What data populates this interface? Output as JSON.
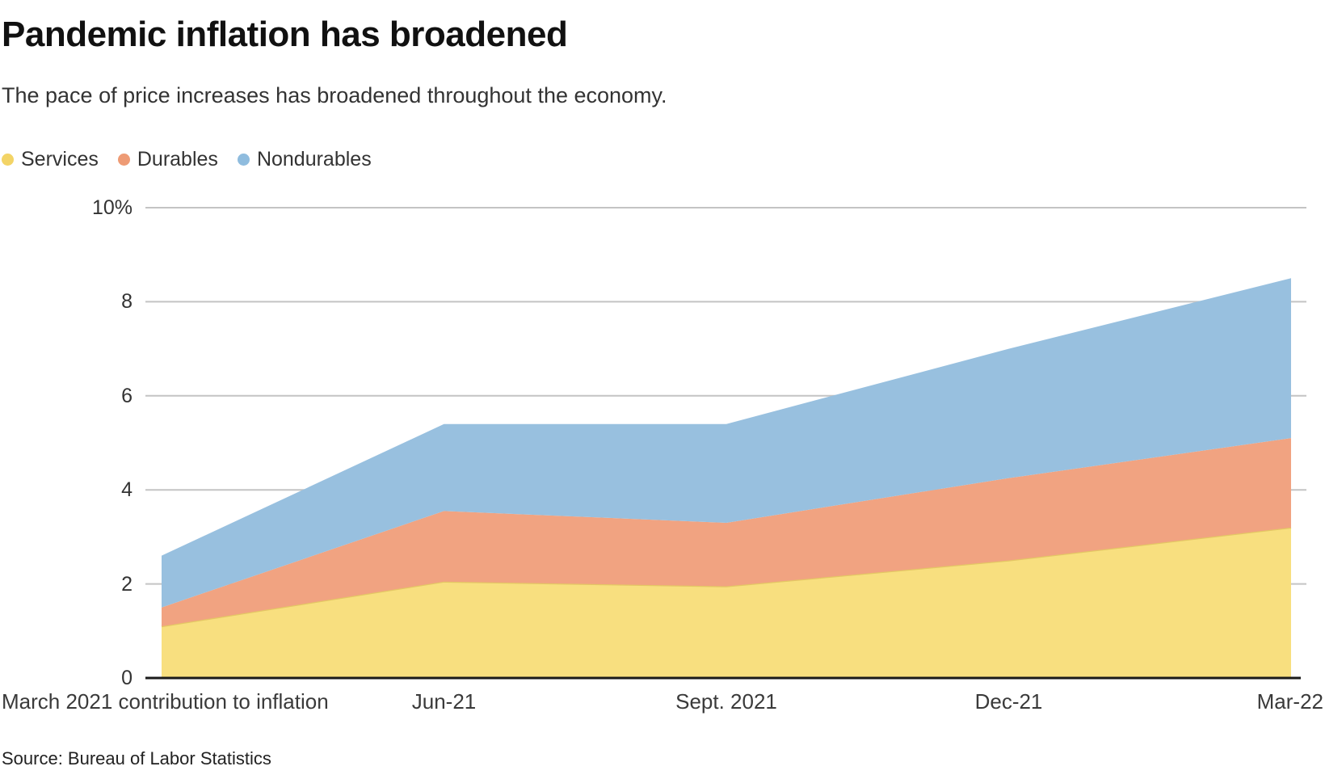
{
  "header": {
    "title": "Pandemic inflation has broadened",
    "subtitle": "The pace of price increases has broadened throughout the economy."
  },
  "chart_data": {
    "type": "area",
    "stacked": true,
    "title": "Pandemic inflation has broadened",
    "categories": [
      "March 2021",
      "Jun-21",
      "Sept. 2021",
      "Dec-21",
      "Mar-22"
    ],
    "series": [
      {
        "name": "Services",
        "values": [
          1.1,
          2.05,
          1.95,
          2.5,
          3.2
        ],
        "dot_color": "#f3d466",
        "fill_color": "#f8df7f",
        "edge_color": "#e4c764"
      },
      {
        "name": "Durables",
        "values": [
          0.4,
          1.5,
          1.35,
          1.75,
          1.9
        ],
        "dot_color": "#ee9b75",
        "fill_color": "#f1a381",
        "edge_color": ""
      },
      {
        "name": "Nondurables",
        "values": [
          1.1,
          1.85,
          2.1,
          2.75,
          3.4
        ],
        "dot_color": "#8fbcde",
        "fill_color": "#98c0df",
        "edge_color": ""
      }
    ],
    "stacked_totals": [
      2.6,
      5.4,
      5.4,
      7.0,
      8.5
    ],
    "ylim": [
      0,
      10
    ],
    "yticks": [
      {
        "value": 0,
        "label": "0"
      },
      {
        "value": 2,
        "label": "2"
      },
      {
        "value": 4,
        "label": "4"
      },
      {
        "value": 6,
        "label": "6"
      },
      {
        "value": 8,
        "label": "8"
      },
      {
        "value": 10,
        "label": "10%"
      }
    ],
    "xlabels": [
      {
        "label": "March 2021 contribution to inflation",
        "position": 0,
        "align": "left"
      },
      {
        "label": "Jun-21",
        "position": 0.25,
        "align": "center"
      },
      {
        "label": "Sept. 2021",
        "position": 0.5,
        "align": "center"
      },
      {
        "label": "Dec-21",
        "position": 0.75,
        "align": "center"
      },
      {
        "label": "Mar-22",
        "position": 1,
        "align": "right"
      }
    ],
    "grid": true,
    "legend_position": "top-left",
    "colors": {
      "gridline": "#c4c4c4",
      "axis": "#1a1a1a"
    }
  },
  "footer": {
    "source": "Source: Bureau of Labor Statistics"
  }
}
